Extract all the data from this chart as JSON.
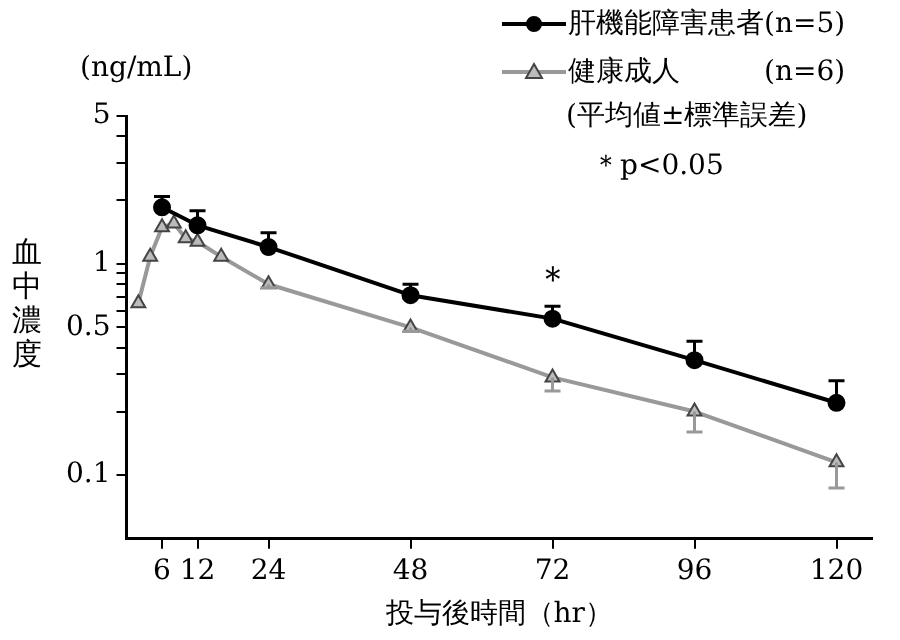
{
  "chart_data": {
    "type": "line",
    "xlabel": "投与後時間（hr）",
    "ylabel": "血中濃度",
    "log": "y",
    "grid": false,
    "legend": "top right",
    "line_style": "solid",
    "xlim": [
      0,
      126
    ],
    "xticks": [
      6,
      12,
      24,
      48,
      72,
      96,
      120
    ],
    "ylim": [
      0.05,
      5
    ],
    "yticks": [
      0.1,
      {
        "value": 0.2,
        "label": null
      },
      {
        "value": 0.3,
        "label": null
      },
      {
        "value": 0.4,
        "label": null
      },
      0.5,
      {
        "value": 0.6,
        "label": null
      },
      {
        "value": 0.7,
        "label": null
      },
      {
        "value": 0.8,
        "label": null
      },
      {
        "value": 0.9,
        "label": null
      },
      1,
      {
        "value": 2,
        "label": null
      },
      {
        "value": 3,
        "label": null
      },
      {
        "value": 4,
        "label": null
      },
      5
    ],
    "series": [
      {
        "name": "肝機能障害患者(n=5)",
        "color": "#000000",
        "marker": "circle",
        "x": [
          6,
          12,
          24,
          48,
          72,
          96,
          120
        ],
        "values": [
          1.85,
          1.52,
          1.2,
          0.71,
          0.55,
          0.35,
          0.22
        ],
        "errors": [
          [
            1.85,
            2.08
          ],
          [
            1.52,
            1.78
          ],
          [
            1.2,
            1.4
          ],
          [
            0.71,
            0.8
          ],
          [
            0.55,
            0.63
          ],
          [
            0.35,
            0.43
          ],
          [
            0.22,
            0.28
          ]
        ]
      },
      {
        "name": "健康成人　　　(n=6)",
        "color": "#999999",
        "marker": "triangle",
        "x": [
          2,
          4,
          6,
          8,
          10,
          12,
          16,
          24,
          48,
          72,
          96,
          120
        ],
        "values": [
          0.65,
          1.08,
          1.49,
          1.55,
          1.32,
          1.27,
          1.08,
          0.8,
          0.5,
          0.29,
          0.2,
          0.115
        ],
        "errors": [
          null,
          null,
          null,
          null,
          null,
          null,
          null,
          [
            0.77,
            0.8
          ],
          [
            0.48,
            0.5
          ],
          [
            0.25,
            0.29
          ],
          [
            0.16,
            0.2
          ],
          [
            0.087,
            0.115
          ]
        ]
      }
    ],
    "annotations": [
      "(ng/mL)",
      "(平均値±標準誤差)",
      "＊p<0.05",
      {
        "text": "＊",
        "x": 72,
        "y": 0.55
      }
    ]
  }
}
